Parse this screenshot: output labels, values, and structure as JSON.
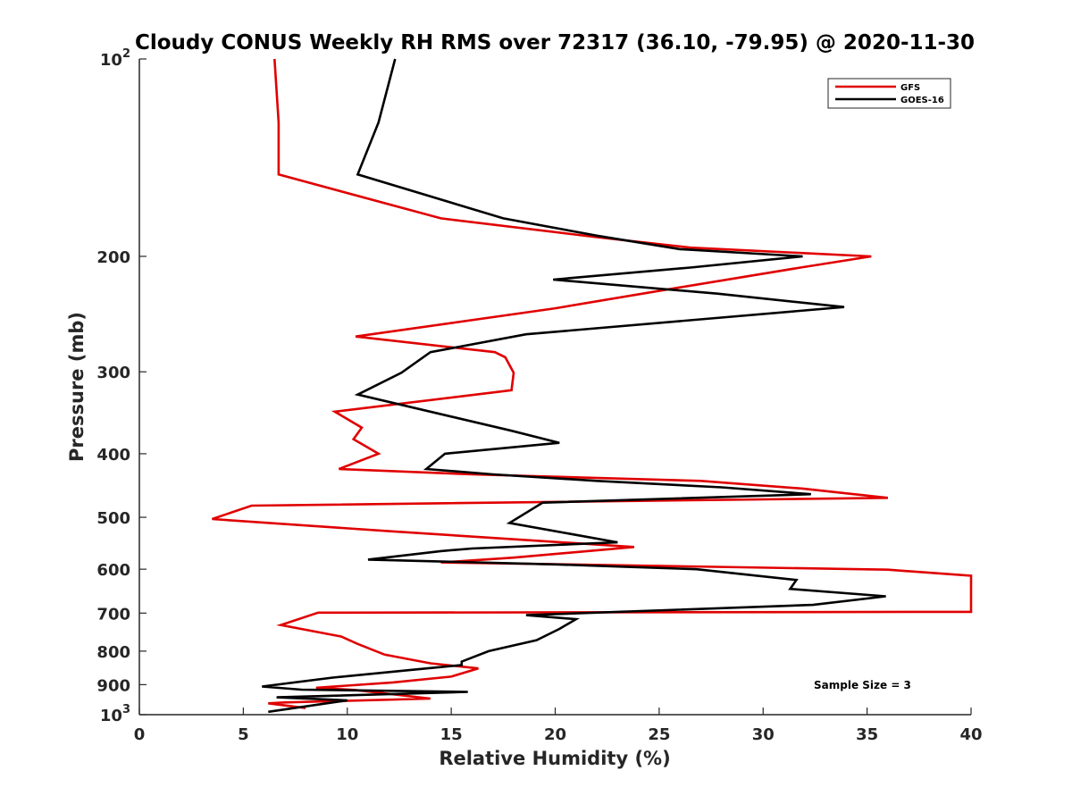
{
  "chart_data": {
    "type": "line",
    "title": "Cloudy CONUS Weekly RH RMS over 72317 (36.10, -79.95) @ 2020-11-30",
    "xlabel": "Relative Humidity (%)",
    "ylabel": "Pressure (mb)",
    "xlim": [
      0,
      40
    ],
    "ylim": [
      100,
      1000
    ],
    "y_scale": "log",
    "y_reversed": true,
    "x_ticks": [
      0,
      5,
      10,
      15,
      20,
      25,
      30,
      35,
      40
    ],
    "x_tick_labels": [
      "0",
      "5",
      "10",
      "15",
      "20",
      "25",
      "30",
      "35",
      "40"
    ],
    "y_ticks": [
      100,
      200,
      300,
      400,
      500,
      600,
      700,
      800,
      900,
      1000
    ],
    "y_tick_labels": [
      {
        "base": "10",
        "exp": "2"
      },
      {
        "base": "200",
        "exp": ""
      },
      {
        "base": "300",
        "exp": ""
      },
      {
        "base": "400",
        "exp": ""
      },
      {
        "base": "500",
        "exp": ""
      },
      {
        "base": "600",
        "exp": ""
      },
      {
        "base": "700",
        "exp": ""
      },
      {
        "base": "800",
        "exp": ""
      },
      {
        "base": "900",
        "exp": ""
      },
      {
        "base": "10",
        "exp": "3"
      }
    ],
    "grid": false,
    "legend_position": "top-right",
    "series": [
      {
        "name": "GFS",
        "color": "#e00000",
        "points": [
          [
            6.5,
            100
          ],
          [
            6.7,
            125
          ],
          [
            6.7,
            150
          ],
          [
            14.5,
            175
          ],
          [
            22,
            187
          ],
          [
            26.5,
            194
          ],
          [
            35.2,
            200
          ],
          [
            31.8,
            208
          ],
          [
            26,
            223
          ],
          [
            20,
            240
          ],
          [
            10.4,
            265
          ],
          [
            17.1,
            280
          ],
          [
            17.6,
            285
          ],
          [
            18,
            301
          ],
          [
            17.9,
            320
          ],
          [
            9.4,
            345
          ],
          [
            10.7,
            365
          ],
          [
            10.3,
            380
          ],
          [
            11.5,
            400
          ],
          [
            9.6,
            422
          ],
          [
            16,
            430
          ],
          [
            27,
            440
          ],
          [
            31.9,
            452
          ],
          [
            36,
            467
          ],
          [
            5.4,
            480
          ],
          [
            3.5,
            503
          ],
          [
            12,
            525
          ],
          [
            23.8,
            555
          ],
          [
            18,
            576
          ],
          [
            14.5,
            586
          ],
          [
            20.6,
            590
          ],
          [
            36,
            601
          ],
          [
            40,
            614
          ],
          [
            40,
            697
          ],
          [
            8.6,
            699
          ],
          [
            6.8,
            730
          ],
          [
            9.7,
            760
          ],
          [
            10.5,
            780
          ],
          [
            11.8,
            810
          ],
          [
            14,
            835
          ],
          [
            16.3,
            850
          ],
          [
            15,
            875
          ],
          [
            12.2,
            893
          ],
          [
            8.5,
            910
          ],
          [
            10.4,
            917
          ],
          [
            14,
            945
          ],
          [
            7,
            958
          ],
          [
            6.2,
            961
          ],
          [
            8,
            977
          ]
        ]
      },
      {
        "name": "GOES-16",
        "color": "#000000",
        "points": [
          [
            12.3,
            100
          ],
          [
            11.5,
            125
          ],
          [
            10.5,
            150
          ],
          [
            17.5,
            175
          ],
          [
            22,
            186
          ],
          [
            26,
            195
          ],
          [
            31.9,
            200
          ],
          [
            26.5,
            208
          ],
          [
            19.9,
            217
          ],
          [
            27.8,
            228
          ],
          [
            33.9,
            239
          ],
          [
            18.6,
            263
          ],
          [
            14,
            280
          ],
          [
            12.6,
            301
          ],
          [
            10.5,
            325
          ],
          [
            17.9,
            369
          ],
          [
            20.2,
            385
          ],
          [
            14.7,
            400
          ],
          [
            13.8,
            422
          ],
          [
            17,
            430
          ],
          [
            22,
            440
          ],
          [
            28,
            450
          ],
          [
            32.3,
            461
          ],
          [
            19.4,
            475
          ],
          [
            17.8,
            510
          ],
          [
            23,
            546
          ],
          [
            16,
            558
          ],
          [
            14.5,
            563
          ],
          [
            11,
            580
          ],
          [
            20,
            590
          ],
          [
            26.8,
            600
          ],
          [
            31.6,
            623
          ],
          [
            31.3,
            643
          ],
          [
            35.9,
            660
          ],
          [
            32.4,
            680
          ],
          [
            18.6,
            705
          ],
          [
            21,
            715
          ],
          [
            20.2,
            740
          ],
          [
            19.1,
            770
          ],
          [
            16.8,
            800
          ],
          [
            15.5,
            830
          ],
          [
            15.5,
            840
          ],
          [
            13,
            855
          ],
          [
            9.3,
            878
          ],
          [
            5.9,
            906
          ],
          [
            7.8,
            916
          ],
          [
            15.8,
            923
          ],
          [
            6.6,
            941
          ],
          [
            10,
            951
          ],
          [
            6.2,
            990
          ]
        ]
      }
    ],
    "legend": [
      "GFS",
      "GOES-16"
    ],
    "annotation": "Sample Size = 3"
  }
}
